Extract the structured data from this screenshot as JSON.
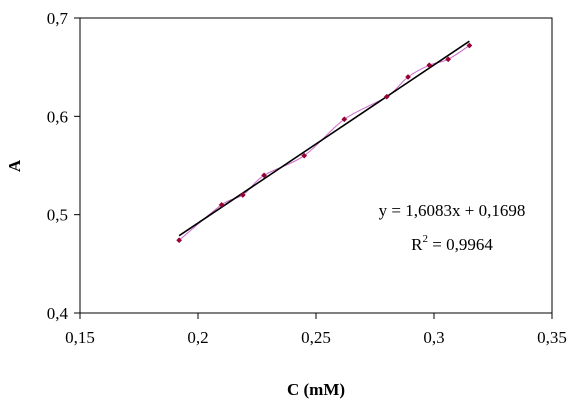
{
  "chart_data": {
    "type": "scatter",
    "title": "",
    "xlabel": "C (mM)",
    "ylabel": "A",
    "xlim": [
      0.15,
      0.35
    ],
    "ylim": [
      0.4,
      0.7
    ],
    "xticks": [
      0.15,
      0.2,
      0.25,
      0.3,
      0.35
    ],
    "yticks": [
      0.4,
      0.5,
      0.6,
      0.7
    ],
    "x_tick_labels": [
      "0,15",
      "0,2",
      "0,25",
      "0,3",
      "0,35"
    ],
    "y_tick_labels": [
      "0,4",
      "0,5",
      "0,6",
      "0,7"
    ],
    "grid": false,
    "legend": "none",
    "series": [
      {
        "color": "#990033",
        "marker": "diamond",
        "connected": true,
        "x": [
          0.192,
          0.21,
          0.219,
          0.228,
          0.245,
          0.262,
          0.28,
          0.289,
          0.298,
          0.306,
          0.315
        ],
        "y": [
          0.474,
          0.51,
          0.52,
          0.54,
          0.56,
          0.597,
          0.62,
          0.64,
          0.652,
          0.658,
          0.672
        ]
      }
    ],
    "trendline": {
      "type": "linear",
      "slope": 1.6083,
      "intercept": 0.1698,
      "x_range": [
        0.192,
        0.315
      ],
      "color": "#000000",
      "equation_label": "y = 1,6083x + 0,1698",
      "r2_prefix": "R",
      "r2_exponent": "2",
      "r2_suffix": " = 0,9964"
    }
  }
}
